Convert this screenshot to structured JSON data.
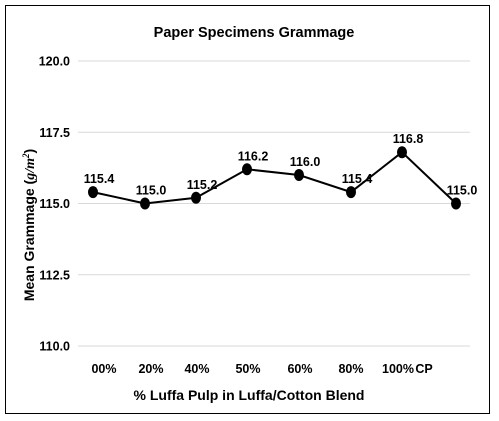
{
  "chart_data": {
    "type": "line",
    "title": "Paper Specimens Grammage",
    "xlabel": "% Luffa Pulp in Luffa/Cotton Blend",
    "ylabel": "Mean Grammage (g/m²)",
    "ylabel_parts": {
      "text": "Mean Grammage (",
      "unit_base": "g/m",
      "unit_exp": "2",
      "close": ")"
    },
    "categories": [
      "00%",
      "20%",
      "40%",
      "50%",
      "60%",
      "80%",
      "100%",
      "CP"
    ],
    "values": [
      115.4,
      115.0,
      115.2,
      116.2,
      116.0,
      115.4,
      116.8,
      115.0
    ],
    "data_labels": [
      "115.4",
      "115.0",
      "115.2",
      "116.2",
      "116.0",
      "115.4",
      "116.8",
      "115.0"
    ],
    "ylim": [
      110.0,
      120.0
    ],
    "yticks": [
      110.0,
      112.5,
      115.0,
      117.5,
      120.0
    ],
    "ytick_labels": [
      "110.0",
      "112.5",
      "115.0",
      "117.5",
      "120.0"
    ],
    "grid": "horizontal",
    "legend": "none",
    "colors": {
      "line": "#000000",
      "marker": "#000000",
      "grid": "#d9d9d9",
      "frame": "#000000"
    }
  }
}
